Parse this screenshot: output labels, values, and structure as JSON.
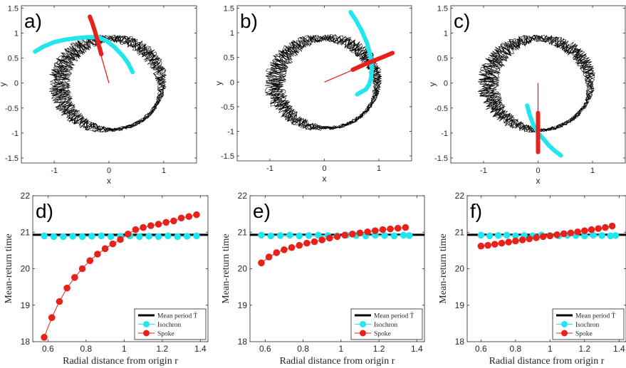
{
  "colors": {
    "trajectory": "#000000",
    "isochron": "#22e5ef",
    "spoke": "#e8211a",
    "mean_line": "#000000"
  },
  "chart_data": [
    {
      "type": "line",
      "panel_label": "a)",
      "xlabel": "x",
      "ylabel": "y",
      "xlim": [
        -1.6,
        1.6
      ],
      "ylim": [
        -1.6,
        1.55
      ],
      "xticks": [
        -1,
        0,
        1
      ],
      "xtick_labels": [
        "-1",
        "0",
        "1"
      ],
      "yticks": [
        -1.5,
        -1,
        -0.5,
        0,
        0.5,
        1,
        1.5
      ],
      "ytick_labels": [
        "-1.5",
        "-1",
        "-0.5",
        "0",
        "0.5",
        "1",
        "1.5"
      ],
      "limit_cycle": {
        "center": [
          0,
          0
        ],
        "radius": 0.95
      },
      "series": [
        {
          "name": "Isochron",
          "x": [
            -1.35,
            -1.2,
            -1.0,
            -0.8,
            -0.6,
            -0.4,
            -0.2,
            -0.05,
            0.1,
            0.25,
            0.35,
            0.43
          ],
          "y": [
            0.63,
            0.73,
            0.82,
            0.87,
            0.9,
            0.92,
            0.92,
            0.85,
            0.72,
            0.55,
            0.4,
            0.22
          ]
        },
        {
          "name": "Spoke",
          "x": [
            -0.14,
            -0.2,
            -0.26,
            -0.31,
            -0.35
          ],
          "y": [
            0.58,
            0.82,
            1.05,
            1.22,
            1.33
          ]
        },
        {
          "name": "Spoke radius",
          "x": [
            0,
            -0.35
          ],
          "y": [
            0,
            1.33
          ]
        }
      ]
    },
    {
      "type": "line",
      "panel_label": "b)",
      "xlabel": "x",
      "ylabel": "y",
      "xlim": [
        -1.6,
        1.6
      ],
      "ylim": [
        -1.6,
        1.55
      ],
      "xticks": [
        -1,
        0,
        1
      ],
      "xtick_labels": [
        "-1",
        "0",
        "1"
      ],
      "yticks": [
        -1.5,
        -1,
        -0.5,
        0,
        0.5,
        1,
        1.5
      ],
      "ytick_labels": [
        "-1.5",
        "-1",
        "-0.5",
        "0",
        "0.5",
        "1",
        "1.5"
      ],
      "limit_cycle": {
        "center": [
          0,
          0
        ],
        "radius": 0.95
      },
      "series": [
        {
          "name": "Isochron",
          "x": [
            0.48,
            0.58,
            0.68,
            0.78,
            0.84,
            0.87,
            0.86,
            0.82,
            0.76,
            0.68,
            0.6
          ],
          "y": [
            1.42,
            1.25,
            1.05,
            0.8,
            0.55,
            0.3,
            0.1,
            -0.05,
            -0.15,
            -0.2,
            -0.25
          ]
        },
        {
          "name": "Spoke",
          "x": [
            0.52,
            0.72,
            0.92,
            1.1,
            1.25
          ],
          "y": [
            0.25,
            0.35,
            0.44,
            0.52,
            0.59
          ]
        },
        {
          "name": "Spoke radius",
          "x": [
            0,
            1.25
          ],
          "y": [
            0,
            0.59
          ]
        }
      ]
    },
    {
      "type": "line",
      "panel_label": "c)",
      "xlabel": "x",
      "ylabel": "y",
      "xlim": [
        -1.6,
        1.6
      ],
      "ylim": [
        -1.6,
        1.55
      ],
      "xticks": [
        -1,
        0,
        1
      ],
      "xtick_labels": [
        "-1",
        "0",
        "1"
      ],
      "yticks": [
        -1.5,
        -1,
        -0.5,
        0,
        0.5,
        1,
        1.5
      ],
      "ytick_labels": [
        "-1.5",
        "-1",
        "-0.5",
        "0",
        "0.5",
        "1",
        "1.5"
      ],
      "limit_cycle": {
        "center": [
          0,
          0
        ],
        "radius": 0.95
      },
      "series": [
        {
          "name": "Isochron",
          "x": [
            -0.2,
            -0.15,
            -0.08,
            0.0,
            0.1,
            0.2,
            0.3,
            0.42
          ],
          "y": [
            -0.45,
            -0.65,
            -0.85,
            -1.0,
            -1.12,
            -1.25,
            -1.35,
            -1.45
          ]
        },
        {
          "name": "Spoke",
          "x": [
            0,
            0,
            0,
            0,
            0
          ],
          "y": [
            -0.6,
            -0.8,
            -1.0,
            -1.2,
            -1.38
          ]
        },
        {
          "name": "Spoke radius",
          "x": [
            0,
            0
          ],
          "y": [
            0,
            -1.38
          ]
        }
      ]
    },
    {
      "type": "line",
      "panel_label": "d)",
      "xlabel": "Radial distance from origin r",
      "ylabel": "Mean-return time",
      "xlim": [
        0.52,
        1.44
      ],
      "ylim": [
        18,
        22
      ],
      "xticks": [
        0.6,
        0.8,
        1,
        1.2,
        1.4
      ],
      "xtick_labels": [
        "0.6",
        "0.8",
        "1",
        "1.2",
        "1.4"
      ],
      "yticks": [
        18,
        19,
        20,
        21,
        22
      ],
      "ytick_labels": [
        "18",
        "19",
        "20",
        "21",
        "22"
      ],
      "mean_period": 20.93,
      "legend": [
        "Mean period T̄",
        "Isochron",
        "Spoke"
      ],
      "legend_position": "bottom-right",
      "series": [
        {
          "name": "Isochron",
          "x": [
            0.58,
            0.63,
            0.68,
            0.73,
            0.78,
            0.83,
            0.88,
            0.93,
            0.98,
            1.03,
            1.08,
            1.13,
            1.18,
            1.23,
            1.28,
            1.33,
            1.38
          ],
          "y": [
            20.9,
            20.88,
            20.88,
            20.89,
            20.88,
            20.89,
            20.9,
            20.88,
            20.89,
            20.9,
            20.88,
            20.89,
            20.88,
            20.9,
            20.88,
            20.89,
            20.9
          ]
        },
        {
          "name": "Spoke",
          "x": [
            0.58,
            0.62,
            0.66,
            0.7,
            0.74,
            0.78,
            0.82,
            0.86,
            0.9,
            0.94,
            0.98,
            1.02,
            1.06,
            1.1,
            1.14,
            1.18,
            1.22,
            1.26,
            1.3,
            1.34,
            1.38
          ],
          "y": [
            18.12,
            18.66,
            19.1,
            19.47,
            19.76,
            20.0,
            20.22,
            20.4,
            20.55,
            20.68,
            20.8,
            20.95,
            21.07,
            21.13,
            21.18,
            21.22,
            21.27,
            21.31,
            21.39,
            21.43,
            21.48
          ]
        }
      ]
    },
    {
      "type": "line",
      "panel_label": "e)",
      "xlabel": "Radial distance from origin r",
      "ylabel": "Mean-return time",
      "xlim": [
        0.52,
        1.44
      ],
      "ylim": [
        18,
        22
      ],
      "xticks": [
        0.6,
        0.8,
        1,
        1.2,
        1.4
      ],
      "xtick_labels": [
        "0.6",
        "0.8",
        "1",
        "1.2",
        "1.4"
      ],
      "yticks": [
        18,
        19,
        20,
        21,
        22
      ],
      "ytick_labels": [
        "18",
        "19",
        "20",
        "21",
        "22"
      ],
      "mean_period": 20.93,
      "legend": [
        "Mean period T̄",
        "Isochron",
        "Spoke"
      ],
      "legend_position": "bottom-right",
      "series": [
        {
          "name": "Isochron",
          "x": [
            0.58,
            0.63,
            0.68,
            0.73,
            0.78,
            0.83,
            0.88,
            0.93,
            0.98,
            1.03,
            1.08,
            1.13,
            1.18,
            1.23,
            1.28,
            1.33,
            1.36
          ],
          "y": [
            20.92,
            20.9,
            20.91,
            20.92,
            20.9,
            20.91,
            20.92,
            20.91,
            20.9,
            20.92,
            20.91,
            20.9,
            20.92,
            20.91,
            20.9,
            20.92,
            20.91
          ]
        },
        {
          "name": "Spoke",
          "x": [
            0.58,
            0.62,
            0.66,
            0.7,
            0.74,
            0.78,
            0.82,
            0.86,
            0.9,
            0.94,
            0.98,
            1.02,
            1.06,
            1.1,
            1.14,
            1.18,
            1.22,
            1.26,
            1.3,
            1.34
          ],
          "y": [
            20.16,
            20.32,
            20.44,
            20.52,
            20.58,
            20.64,
            20.7,
            20.74,
            20.79,
            20.84,
            20.88,
            20.92,
            20.95,
            20.98,
            21.01,
            21.04,
            21.07,
            21.09,
            21.11,
            21.13
          ]
        }
      ]
    },
    {
      "type": "line",
      "panel_label": "f)",
      "xlabel": "Radial distance from origin r",
      "ylabel": "Mean-return time",
      "xlim": [
        0.52,
        1.44
      ],
      "ylim": [
        18,
        22
      ],
      "xticks": [
        0.6,
        0.8,
        1,
        1.2,
        1.4
      ],
      "xtick_labels": [
        "0.6",
        "0.8",
        "1",
        "1.2",
        "1.4"
      ],
      "yticks": [
        18,
        19,
        20,
        21,
        22
      ],
      "ytick_labels": [
        "18",
        "19",
        "20",
        "21",
        "22"
      ],
      "mean_period": 20.93,
      "legend": [
        "Mean period T̄",
        "Isochron",
        "Spoke"
      ],
      "legend_position": "bottom-right",
      "series": [
        {
          "name": "Isochron",
          "x": [
            0.6,
            0.65,
            0.7,
            0.75,
            0.8,
            0.85,
            0.9,
            0.95,
            1.0,
            1.05,
            1.1,
            1.15,
            1.2,
            1.25,
            1.3,
            1.35,
            1.38
          ],
          "y": [
            20.92,
            20.9,
            20.91,
            20.92,
            20.9,
            20.91,
            20.9,
            20.92,
            20.91,
            20.9,
            20.92,
            20.91,
            20.9,
            20.92,
            20.91,
            20.9,
            20.91
          ]
        },
        {
          "name": "Spoke",
          "x": [
            0.6,
            0.64,
            0.68,
            0.72,
            0.76,
            0.8,
            0.84,
            0.88,
            0.92,
            0.96,
            1.0,
            1.04,
            1.08,
            1.12,
            1.16,
            1.2,
            1.24,
            1.28,
            1.32,
            1.36
          ],
          "y": [
            20.62,
            20.64,
            20.67,
            20.7,
            20.73,
            20.76,
            20.79,
            20.82,
            20.85,
            20.88,
            20.9,
            20.93,
            20.96,
            20.98,
            21.01,
            21.04,
            21.07,
            21.1,
            21.13,
            21.17
          ]
        }
      ]
    }
  ]
}
